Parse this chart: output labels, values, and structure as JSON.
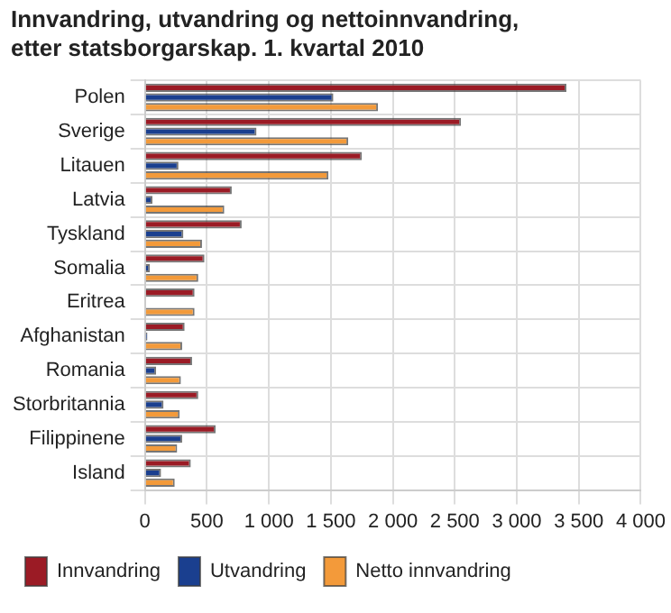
{
  "chart_data": {
    "type": "bar",
    "orientation": "horizontal",
    "title": "Innvandring, utvandring og nettoinnvandring, etter statsborgarskap. 1. kvartal 2010",
    "categories": [
      "Polen",
      "Sverige",
      "Litauen",
      "Latvia",
      "Tyskland",
      "Somalia",
      "Eritrea",
      "Afghanistan",
      "Romania",
      "Storbritannia",
      "Filippinene",
      "Island"
    ],
    "series": [
      {
        "name": "Innvandring",
        "color": "#9b1b25",
        "values": [
          3400,
          2550,
          1750,
          700,
          780,
          480,
          400,
          320,
          380,
          430,
          570,
          370
        ]
      },
      {
        "name": "Utvandring",
        "color": "#1a3f8f",
        "values": [
          1520,
          900,
          270,
          60,
          310,
          40,
          null,
          20,
          90,
          150,
          300,
          130
        ]
      },
      {
        "name": "Netto innvandring",
        "color": "#f39a3a",
        "values": [
          1880,
          1640,
          1480,
          640,
          460,
          430,
          400,
          300,
          290,
          280,
          260,
          240
        ]
      }
    ],
    "xlim": [
      0,
      4000
    ],
    "xticks": [
      {
        "value": 0,
        "label": "0"
      },
      {
        "value": 500,
        "label": "500"
      },
      {
        "value": 1000,
        "label": "1 000"
      },
      {
        "value": 1500,
        "label": "1 500"
      },
      {
        "value": 2000,
        "label": "2 000"
      },
      {
        "value": 2500,
        "label": "2 500"
      },
      {
        "value": 3000,
        "label": "3 000"
      },
      {
        "value": 3500,
        "label": "3 500"
      },
      {
        "value": 4000,
        "label": "4 000"
      }
    ],
    "grid": true,
    "legend": "bottom"
  }
}
